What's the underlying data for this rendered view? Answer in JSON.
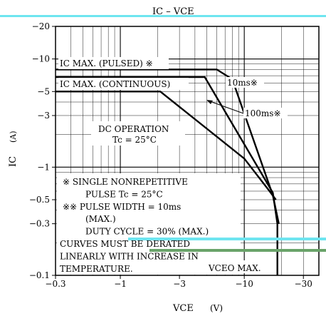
{
  "chart_data": {
    "type": "line",
    "title": "IC  –  VCE",
    "xlabel": "VCE",
    "xunit": "(V)",
    "ylabel": "IC",
    "yunit": "(A)",
    "x_scale": "log",
    "y_scale": "log",
    "xlim": [
      -0.3,
      -40
    ],
    "ylim": [
      -0.1,
      -20
    ],
    "x_ticks": [
      {
        "v": -0.3,
        "label": "−0.3"
      },
      {
        "v": -1,
        "label": "−1"
      },
      {
        "v": -3,
        "label": "−3"
      },
      {
        "v": -10,
        "label": "−10"
      },
      {
        "v": -30,
        "label": "−30"
      }
    ],
    "y_ticks": [
      {
        "v": -20,
        "label": "−20"
      },
      {
        "v": -10,
        "label": "−10"
      },
      {
        "v": -5,
        "label": "−5"
      },
      {
        "v": -3,
        "label": "−3"
      },
      {
        "v": -1,
        "label": "−1"
      },
      {
        "v": -0.5,
        "label": "−0.5"
      },
      {
        "v": -0.3,
        "label": "−0.3"
      },
      {
        "v": -0.1,
        "label": "−0.1"
      }
    ],
    "grid": true,
    "series": [
      {
        "name": "10ms※",
        "x": [
          -0.3,
          -6,
          -8,
          -17,
          -19
        ],
        "y": [
          -8,
          -8,
          -6.5,
          -0.55,
          -0.3
        ]
      },
      {
        "name": "100ms※",
        "x": [
          -0.3,
          -4.8,
          -17,
          -18.5
        ],
        "y": [
          -6.8,
          -6.8,
          -0.58,
          -0.3
        ]
      },
      {
        "name": "DC OPERATION",
        "x": [
          -0.3,
          -2.1,
          -10,
          -16,
          -18
        ],
        "y": [
          -5,
          -5,
          -1.2,
          -0.6,
          -0.5
        ]
      },
      {
        "name": "VCEO MAX.",
        "x": [
          -18.5,
          -18.5
        ],
        "y": [
          -0.3,
          -0.1
        ]
      }
    ],
    "annotations": {
      "pulsed": "IC MAX. (PULSED) ※",
      "continuous": "IC MAX. (CONTINUOUS)",
      "label_10ms": "10ms※",
      "label_100ms": "100ms※",
      "dc_operation": "DC OPERATION",
      "tc": "Tc = 25°C",
      "note_lines": [
        "※   SINGLE NONREPETITIVE",
        "PULSE Tc = 25°C",
        "※※ PULSE WIDTH = 10ms",
        "(MAX.)",
        "DUTY CYCLE = 30% (MAX.)",
        "CURVES MUST BE DERATED",
        "LINEARLY WITH INCREASE IN",
        "TEMPERATURE."
      ],
      "vceo": "VCEO MAX."
    }
  }
}
